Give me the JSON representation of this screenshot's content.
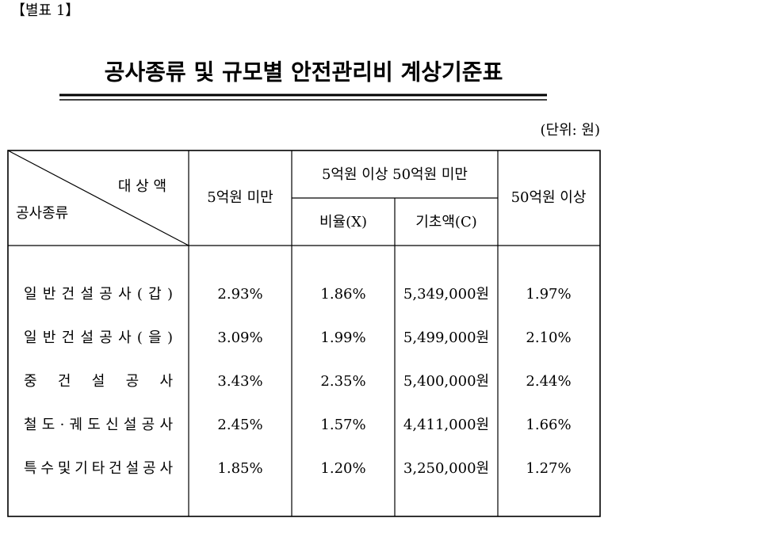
{
  "header": {
    "label": "【별표 1】",
    "title": "공사종류 및 규모별 안전관리비 계상기준표",
    "unit": "(단위: 원)"
  },
  "table": {
    "corner_top": "대 상 액",
    "corner_bottom": "공사종류",
    "col_under5": "5억원 미만",
    "col_5to50": "5억원 이상 50억원 미만",
    "col_rate": "비율(X)",
    "col_base": "기초액(C)",
    "col_over50": "50억원 이상",
    "rows": [
      [
        "일반건설공사(갑)",
        "2.93%",
        "1.86%",
        "5,349,000원",
        "1.97%"
      ],
      [
        "일반건설공사(을)",
        "3.09%",
        "1.99%",
        "5,499,000원",
        "2.10%"
      ],
      [
        "중건설공사",
        "3.43%",
        "2.35%",
        "5,400,000원",
        "2.44%"
      ],
      [
        "철도·궤도신설공사",
        "2.45%",
        "1.57%",
        "4,411,000원",
        "1.66%"
      ],
      [
        "특수및기타건설공사",
        "1.85%",
        "1.20%",
        "3,250,000원",
        "1.27%"
      ]
    ]
  }
}
